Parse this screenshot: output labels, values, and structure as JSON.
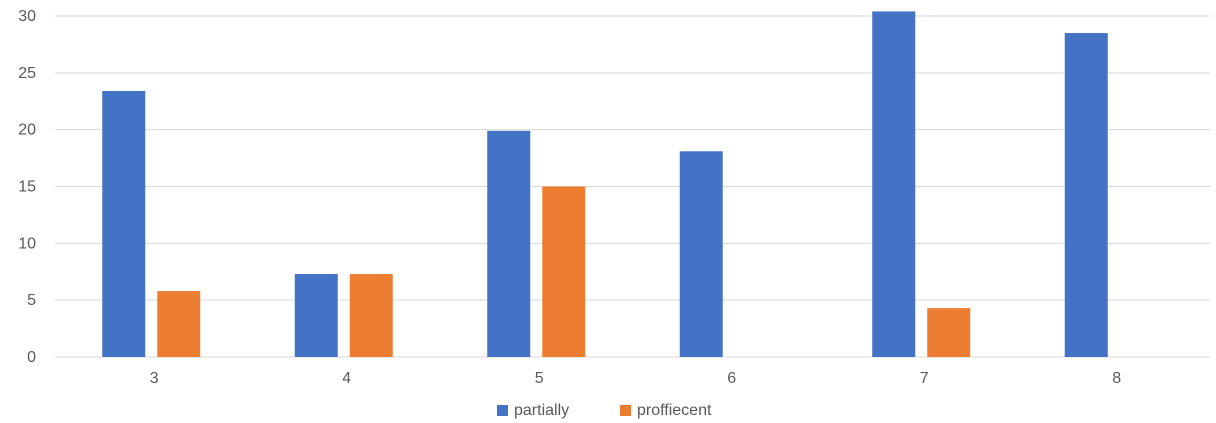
{
  "chart_data": {
    "type": "bar",
    "title": "",
    "xlabel": "",
    "ylabel": "",
    "categories": [
      "3",
      "4",
      "5",
      "6",
      "7",
      "8"
    ],
    "series": [
      {
        "name": "partially",
        "color": "#4472C4",
        "values": [
          23.4,
          7.3,
          19.9,
          18.1,
          30.4,
          28.5
        ]
      },
      {
        "name": "proffiecent",
        "color": "#ED7D31",
        "values": [
          5.8,
          7.3,
          15.0,
          0,
          4.3,
          0
        ]
      }
    ],
    "ylim": [
      0,
      30
    ],
    "yticks": [
      0,
      5,
      10,
      15,
      20,
      25,
      30
    ],
    "grid": true,
    "gridline_color": "#D9D9D9",
    "legend_position": "bottom"
  }
}
